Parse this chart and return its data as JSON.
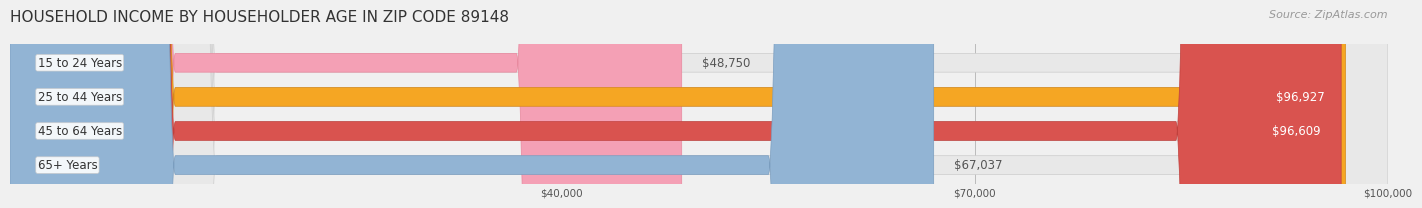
{
  "title": "HOUSEHOLD INCOME BY HOUSEHOLDER AGE IN ZIP CODE 89148",
  "source": "Source: ZipAtlas.com",
  "categories": [
    "15 to 24 Years",
    "25 to 44 Years",
    "45 to 64 Years",
    "65+ Years"
  ],
  "values": [
    48750,
    96927,
    96609,
    67037
  ],
  "bar_colors": [
    "#f4a0b5",
    "#f5a623",
    "#d9534f",
    "#92b4d4"
  ],
  "bar_edge_colors": [
    "#e8889e",
    "#d4881a",
    "#c0403c",
    "#7a9dbf"
  ],
  "value_labels": [
    "$48,750",
    "$96,927",
    "$96,609",
    "$67,037"
  ],
  "xmin": 0,
  "xmax": 100000,
  "xticks": [
    40000,
    70000,
    100000
  ],
  "xtick_labels": [
    "$40,000",
    "$70,000",
    "$100,000"
  ],
  "background_color": "#f0f0f0",
  "bar_background_color": "#e8e8e8",
  "title_fontsize": 11,
  "source_fontsize": 8,
  "label_fontsize": 8.5,
  "bar_height": 0.55,
  "value_label_inside_threshold": 70000
}
